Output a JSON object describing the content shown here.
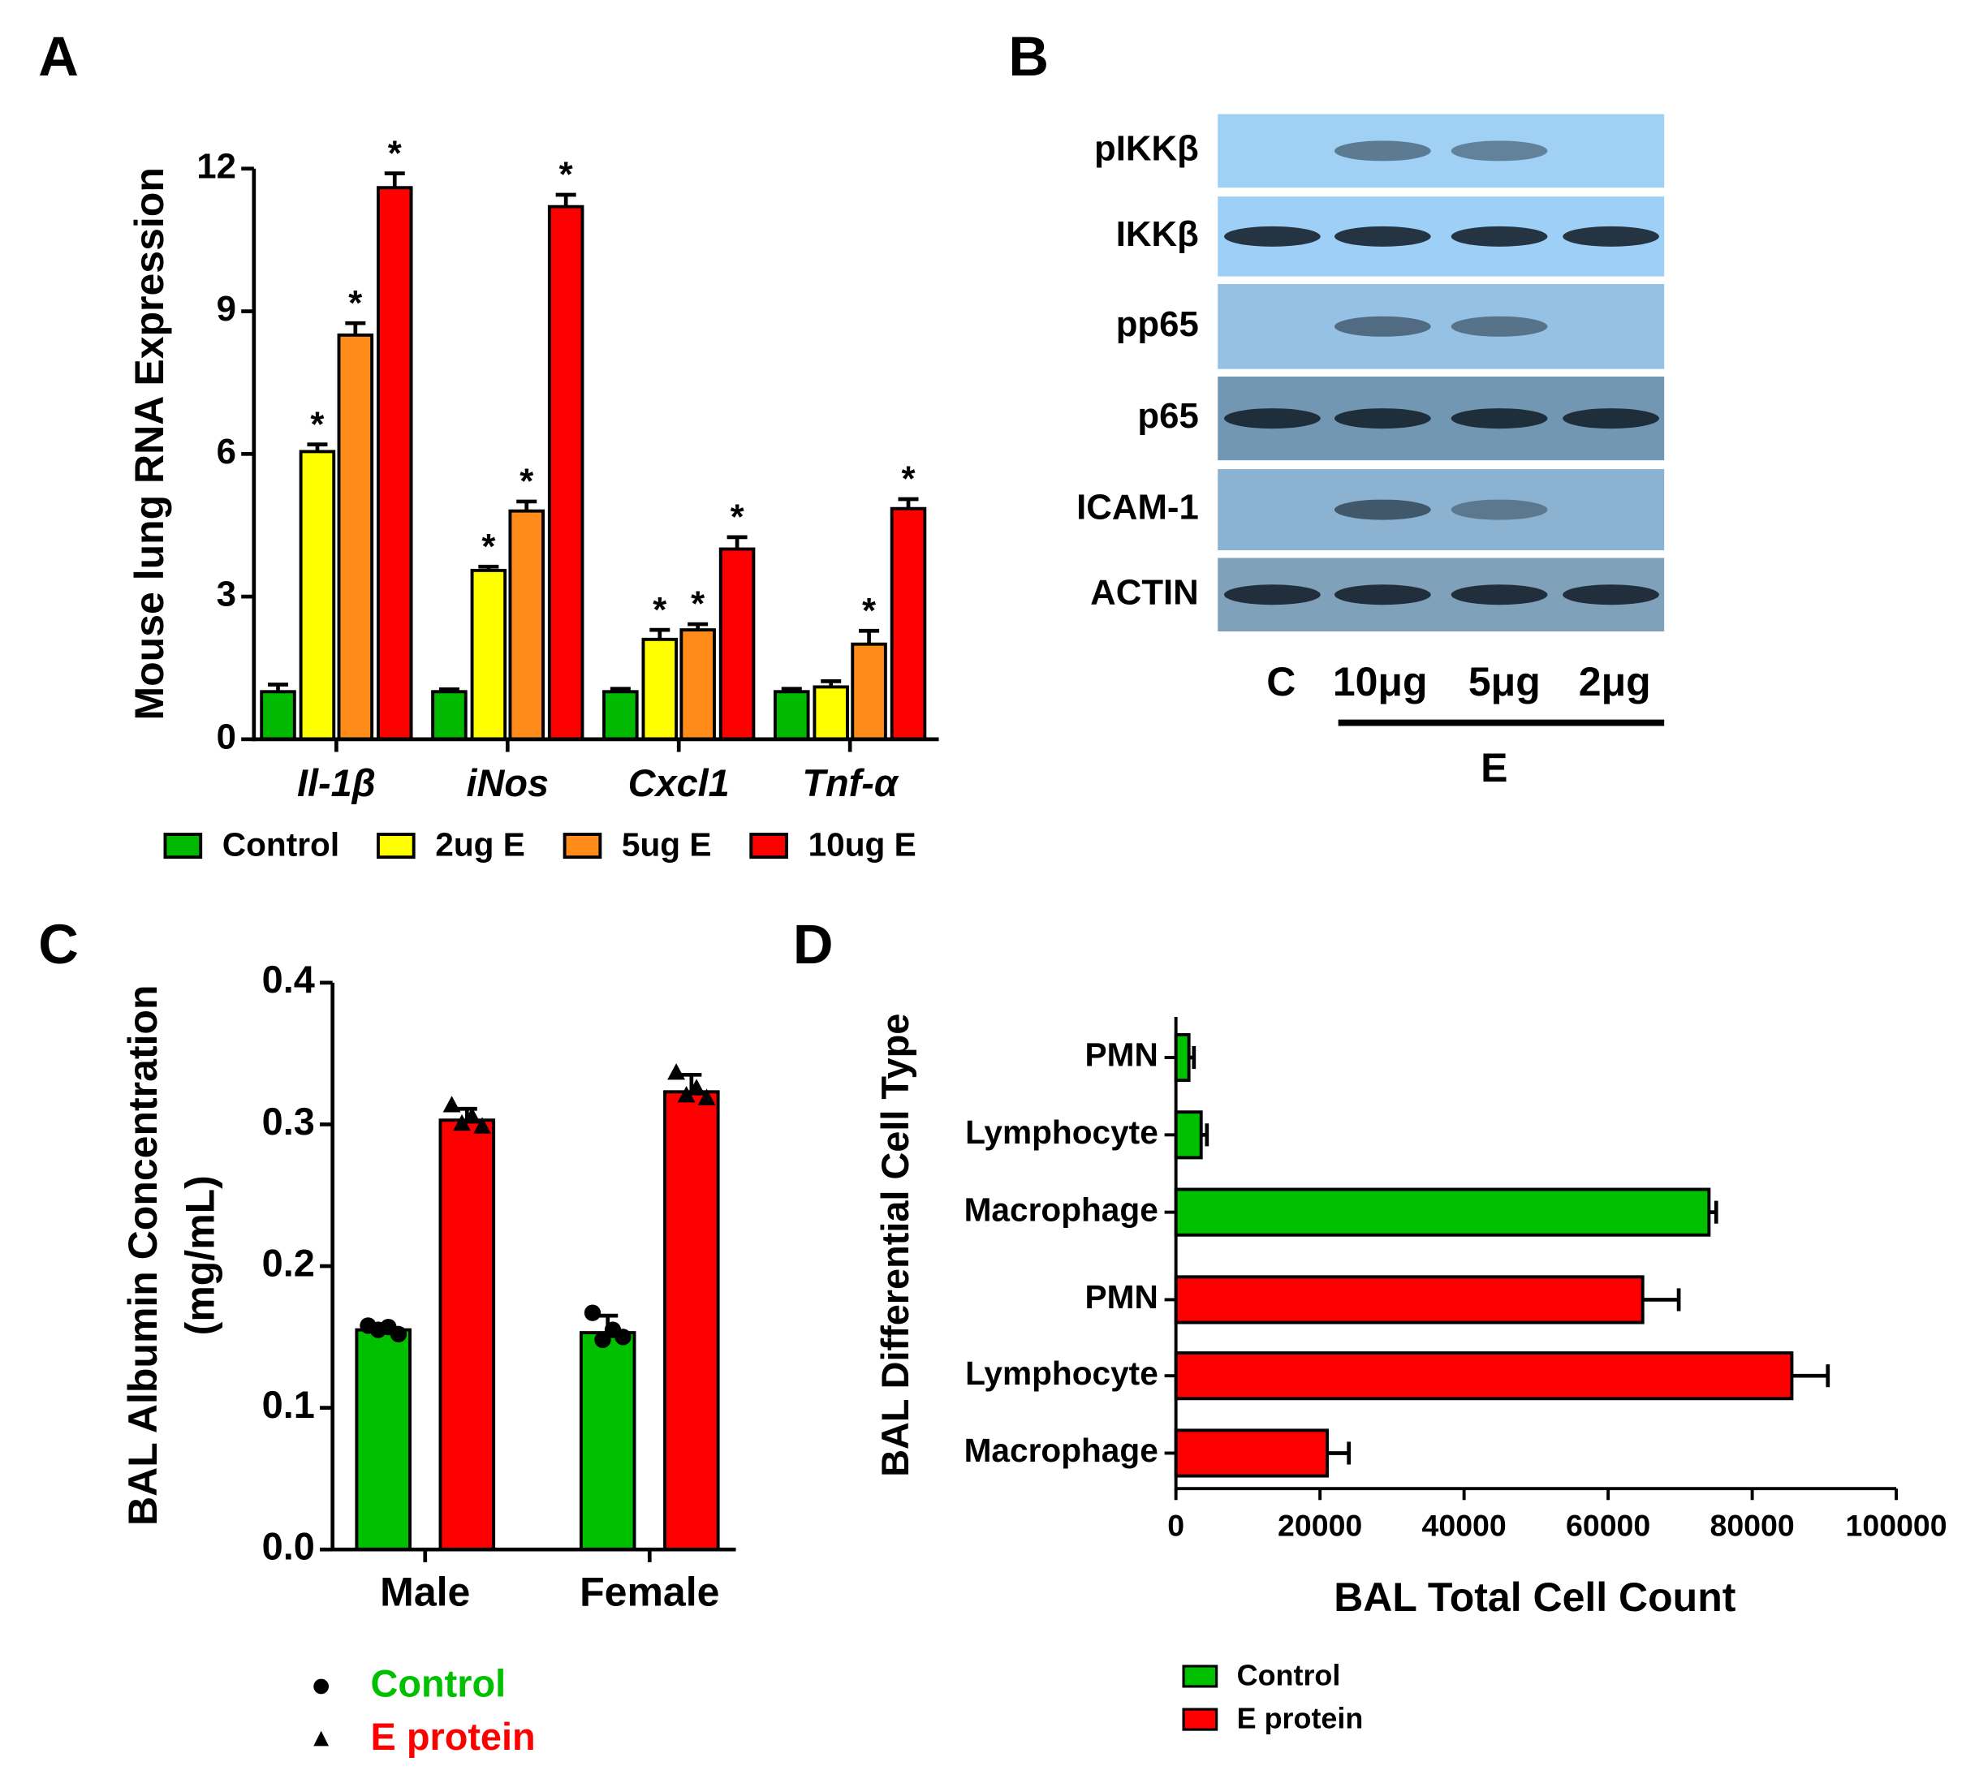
{
  "chart_data": [
    {
      "panel": "A",
      "type": "bar",
      "ylabel": "Mouse lung RNA Expression",
      "categories": [
        "Il-1β",
        "iNos",
        "Cxcl1",
        "Tnf-α"
      ],
      "series": [
        {
          "name": "Control",
          "color": "#00b800",
          "values": [
            1,
            1,
            1,
            1
          ],
          "errors": [
            0.15,
            0.05,
            0.06,
            0.06
          ]
        },
        {
          "name": "2ug E",
          "color": "#ffff00",
          "values": [
            6.05,
            3.55,
            2.1,
            1.1
          ],
          "errors": [
            0.15,
            0.08,
            0.2,
            0.12
          ],
          "labels": [
            "*",
            "*",
            "*",
            null
          ]
        },
        {
          "name": "5ug E",
          "color": "#ff8c1a",
          "values": [
            8.5,
            4.8,
            2.3,
            2.0
          ],
          "errors": [
            0.25,
            0.2,
            0.12,
            0.28
          ],
          "labels": [
            "*",
            "*",
            "*",
            "*"
          ]
        },
        {
          "name": "10ug E",
          "color": "#ff0000",
          "values": [
            11.6,
            11.2,
            4.0,
            4.85
          ],
          "errors": [
            0.3,
            0.25,
            0.25,
            0.2
          ],
          "labels": [
            "*",
            "*",
            "*",
            "*"
          ]
        }
      ],
      "ylim": [
        0,
        12
      ],
      "yticks": [
        0,
        3,
        6,
        9,
        12
      ]
    },
    {
      "panel": "B",
      "type": "blot",
      "rows": [
        "pIKKβ",
        "IKKβ",
        "pp65",
        "p65",
        "ICAM-1",
        "ACTIN"
      ],
      "lanes": [
        "C",
        "10μg",
        "5μg",
        "2μg"
      ],
      "group": "E"
    },
    {
      "panel": "C",
      "type": "bar",
      "ylabel": [
        "BAL Albumin Concentration",
        "(mg/mL)"
      ],
      "categories": [
        "Male",
        "Female"
      ],
      "series": [
        {
          "name": "Control",
          "color": "#00c000",
          "marker": "circle",
          "values": [
            0.155,
            0.153
          ],
          "errors": [
            0.004,
            0.012
          ],
          "points": [
            [
              0.158,
              0.155,
              0.157,
              0.152
            ],
            [
              0.167,
              0.148,
              0.155,
              0.15
            ]
          ]
        },
        {
          "name": "E protein",
          "color": "#ff0000",
          "marker": "triangle",
          "values": [
            0.303,
            0.323
          ],
          "errors": [
            0.008,
            0.012
          ],
          "points": [
            [
              0.313,
              0.3,
              0.305,
              0.298
            ],
            [
              0.336,
              0.32,
              0.325,
              0.318
            ]
          ]
        }
      ],
      "ylim": [
        0,
        0.4
      ],
      "yticks": [
        {
          "value": 0,
          "label": "0.0"
        },
        0.1,
        0.2,
        0.3,
        0.4
      ]
    },
    {
      "panel": "D",
      "type": "barh",
      "xlabel": "BAL Total Cell Count",
      "ylabel": "BAL Differential Cell Type",
      "categories": [
        "PMN",
        "Lymphocyte",
        "Macrophage",
        "PMN",
        "Lymphocyte",
        "Macrophage"
      ],
      "series": [
        {
          "name": "Control",
          "color": "#00c000",
          "values": [
            1800,
            3500,
            74000,
            null,
            null,
            null
          ],
          "errors": [
            700,
            800,
            1000,
            null,
            null,
            null
          ]
        },
        {
          "name": "E protein",
          "color": "#ff0000",
          "values": [
            null,
            null,
            null,
            64800,
            85500,
            21000
          ],
          "errors": [
            null,
            null,
            null,
            5000,
            5000,
            3000
          ]
        }
      ],
      "xlim": [
        0,
        100000
      ],
      "xticks": [
        0,
        20000,
        40000,
        60000,
        80000,
        100000
      ]
    }
  ]
}
